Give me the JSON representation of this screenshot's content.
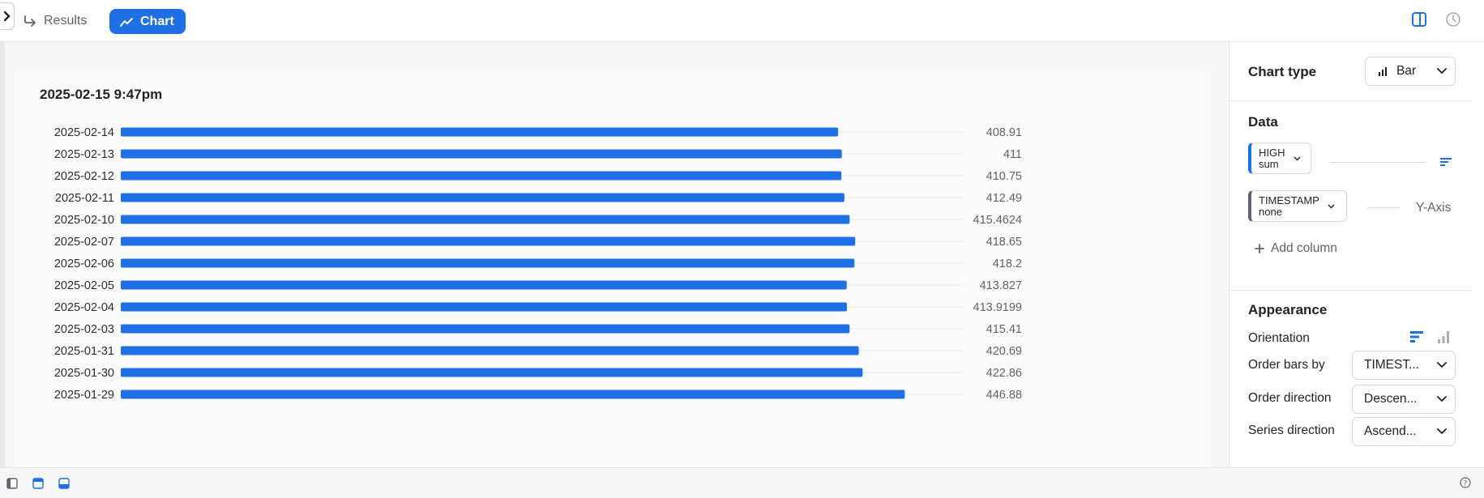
{
  "tabs": {
    "results": "Results",
    "chart": "Chart"
  },
  "chart_title": "2025-02-15 9:47pm",
  "panel": {
    "chart_type_label": "Chart type",
    "chart_type_value": "Bar",
    "data_heading": "Data",
    "columns": [
      {
        "name": "HIGH",
        "agg": "sum"
      },
      {
        "name": "TIMESTAMP",
        "agg": "none",
        "axis": "Y-Axis"
      }
    ],
    "add_column": "Add column",
    "appearance_heading": "Appearance",
    "orientation_label": "Orientation",
    "order_bars_by_label": "Order bars by",
    "order_bars_by_value": "TIMEST...",
    "order_direction_label": "Order direction",
    "order_direction_value": "Descen...",
    "series_direction_label": "Series direction",
    "series_direction_value": "Ascend..."
  },
  "colors": {
    "accent": "#1f6fe5",
    "bar": "#1f6fe5"
  },
  "chart_data": {
    "type": "bar",
    "orientation": "horizontal",
    "title": "2025-02-15 9:47pm",
    "categories": [
      "2025-02-14",
      "2025-02-13",
      "2025-02-12",
      "2025-02-11",
      "2025-02-10",
      "2025-02-07",
      "2025-02-06",
      "2025-02-05",
      "2025-02-04",
      "2025-02-03",
      "2025-01-31",
      "2025-01-30",
      "2025-01-29"
    ],
    "values": [
      408.91,
      411,
      410.75,
      412.49,
      415.4624,
      418.65,
      418.2,
      413.827,
      413.9199,
      415.41,
      420.69,
      422.86,
      446.88
    ],
    "value_labels": [
      "408.91",
      "411",
      "410.75",
      "412.49",
      "415.4624",
      "418.65",
      "418.2",
      "413.827",
      "413.9199",
      "415.41",
      "420.69",
      "422.86",
      "446.88"
    ],
    "series": [
      {
        "name": "HIGH",
        "values": [
          408.91,
          411,
          410.75,
          412.49,
          415.4624,
          418.65,
          418.2,
          413.827,
          413.9199,
          415.41,
          420.69,
          422.86,
          446.88
        ]
      }
    ],
    "xlim": [
      0,
      480
    ],
    "grid": true
  }
}
